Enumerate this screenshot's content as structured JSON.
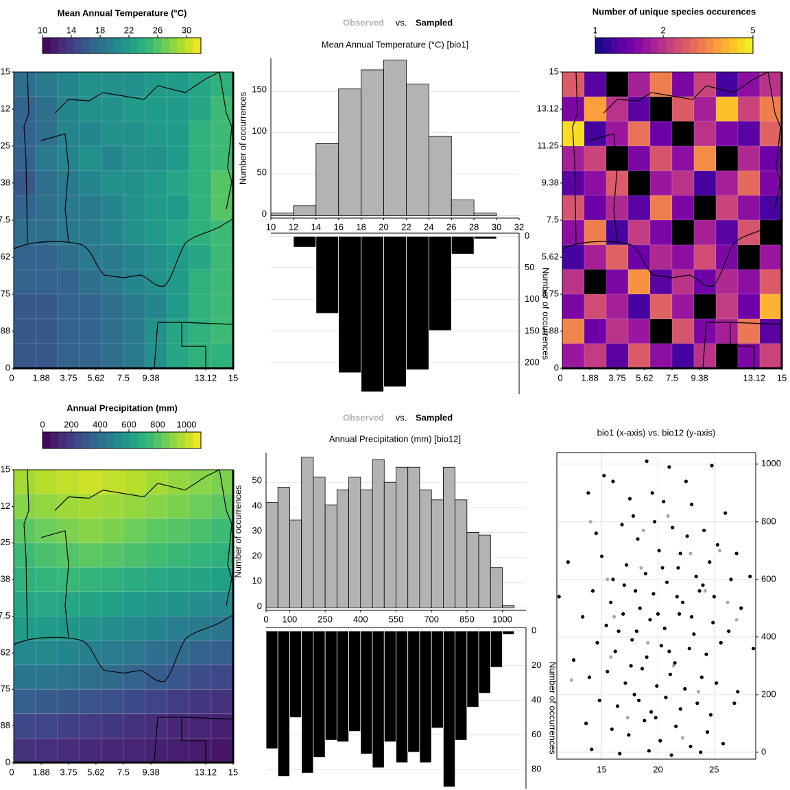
{
  "chart_data": [
    {
      "type": "heatmap",
      "title": "Mean Annual Temperature (°C)",
      "colorbar": {
        "lim": [
          10,
          32
        ],
        "ticks": [
          10,
          14,
          18,
          22,
          26,
          30
        ],
        "log": false,
        "colors": [
          "#440154",
          "#482878",
          "#3e4989",
          "#31688e",
          "#26828e",
          "#1f9e89",
          "#35b779",
          "#6ece58",
          "#b5de2b",
          "#fde725"
        ]
      },
      "null_color": "#000000",
      "xlim": [
        0,
        15
      ],
      "ylim": [
        0,
        15
      ],
      "xticks": [
        0,
        1.88,
        3.75,
        5.62,
        7.5,
        9.38,
        13.12,
        15
      ],
      "yticks": [
        0,
        1.88,
        3.75,
        5.62,
        7.5,
        9.38,
        11.25,
        13.12,
        15
      ],
      "z": [
        [
          18,
          19,
          20,
          21,
          21,
          21,
          22,
          22,
          23,
          24
        ],
        [
          17,
          18,
          20,
          21,
          21,
          22,
          22,
          22,
          23,
          25
        ],
        [
          17,
          18,
          20,
          20,
          21,
          21,
          22,
          22,
          24,
          25
        ],
        [
          17,
          19,
          20,
          21,
          20,
          21,
          21,
          22,
          24,
          25
        ],
        [
          16,
          18,
          19,
          20,
          21,
          21,
          22,
          23,
          24,
          26
        ],
        [
          17,
          18,
          19,
          19,
          20,
          21,
          22,
          22,
          24,
          26
        ],
        [
          18,
          18,
          19,
          19,
          20,
          21,
          22,
          23,
          24,
          25
        ],
        [
          17,
          17,
          18,
          19,
          19,
          20,
          21,
          22,
          23,
          25
        ],
        [
          17,
          17,
          17,
          18,
          19,
          20,
          21,
          22,
          24,
          25
        ],
        [
          16,
          16,
          17,
          17,
          18,
          19,
          20,
          22,
          24,
          25
        ],
        [
          16,
          16,
          17,
          17,
          18,
          19,
          21,
          23,
          24,
          25
        ],
        [
          16,
          16,
          17,
          17,
          18,
          19,
          21,
          23,
          24,
          24
        ]
      ]
    },
    {
      "type": "histogram",
      "title_joiner": "vs.",
      "subtitle": "Mean Annual Temperature (°C) [bio1]",
      "ylabel": "Number of occurrences",
      "y2label": "Number of occurrences",
      "bins": [
        10,
        12,
        14,
        16,
        18,
        20,
        22,
        24,
        26,
        28,
        30,
        32
      ],
      "xlim": [
        10,
        32
      ],
      "xticks": [
        10,
        12,
        14,
        16,
        18,
        20,
        22,
        24,
        26,
        28,
        30,
        32
      ],
      "ylim": [
        -3,
        190
      ],
      "yticks": [
        0,
        50,
        100,
        150
      ],
      "y2lim": [
        -5,
        250
      ],
      "y2ticks": [
        0,
        50,
        100,
        150,
        200
      ],
      "grid": true,
      "series": [
        {
          "name": "Observed",
          "color": "#b3b3b3",
          "values": [
            3,
            12,
            87,
            153,
            176,
            188,
            159,
            96,
            19,
            3,
            0
          ]
        },
        {
          "name": "Sampled",
          "color": "#000000",
          "axis": "y2",
          "values": [
            0,
            17,
            122,
            216,
            246,
            238,
            211,
            149,
            28,
            4,
            0
          ]
        }
      ]
    },
    {
      "type": "heatmap",
      "title": "Number of unique species occurences",
      "colorbar": {
        "lim": [
          1,
          5
        ],
        "ticks": [
          1,
          2,
          5
        ],
        "log": true,
        "colors": [
          "#0d0887",
          "#46039f",
          "#7201a8",
          "#9c179e",
          "#bd3786",
          "#d8576b",
          "#ed7953",
          "#fb9f3a",
          "#fdca26",
          "#f0f921"
        ]
      },
      "null_color": "#000000",
      "xlim": [
        0,
        15
      ],
      "ylim": [
        0,
        15
      ],
      "xticks": [
        0,
        1.88,
        3.75,
        5.62,
        7.5,
        9.38,
        13.12,
        15
      ],
      "yticks": [
        0,
        1.88,
        3.75,
        5.62,
        7.5,
        9.38,
        11.25,
        13.12,
        15
      ],
      "z": [
        [
          2.5,
          1.3,
          null,
          1.8,
          3,
          1.5,
          2.2,
          1.2,
          1.6,
          2
        ],
        [
          1.5,
          3.5,
          2,
          1.3,
          null,
          2.5,
          1.8,
          4,
          2.2,
          3
        ],
        [
          4.5,
          1.2,
          1.7,
          2.8,
          1.4,
          null,
          2,
          1.5,
          1.3,
          2.6
        ],
        [
          1.8,
          2.2,
          null,
          1.5,
          2.4,
          1.6,
          3.2,
          null,
          1.9,
          1.4
        ],
        [
          1.3,
          1.6,
          2.5,
          null,
          1.7,
          2,
          1.2,
          1.8,
          2.7,
          1.5
        ],
        [
          2.4,
          1.4,
          1.9,
          1.3,
          3,
          1.5,
          null,
          2.2,
          1.6,
          1.2
        ],
        [
          1.6,
          3,
          1.2,
          2.1,
          1.5,
          null,
          1.8,
          1.3,
          2.4,
          null
        ],
        [
          1.2,
          1.8,
          2.6,
          1.4,
          1.9,
          1.6,
          2.3,
          1.5,
          null,
          1.7
        ],
        [
          2,
          null,
          1.5,
          3.3,
          1.3,
          2,
          1.4,
          1.9,
          1.6,
          2.5
        ],
        [
          1.5,
          2.3,
          1.8,
          1.2,
          2.6,
          1.7,
          null,
          2.1,
          1.4,
          3.8
        ],
        [
          3.1,
          1.4,
          2,
          1.7,
          null,
          2.4,
          1.5,
          1.8,
          2.9,
          1.3
        ],
        [
          1.7,
          2.1,
          1.3,
          2.5,
          1.6,
          1.2,
          2,
          null,
          1.5,
          2.2
        ]
      ]
    },
    {
      "type": "heatmap",
      "title": "Annual Precipitation (mm)",
      "colorbar": {
        "lim": [
          0,
          1100
        ],
        "ticks": [
          0,
          200,
          400,
          600,
          800,
          1000
        ],
        "log": false,
        "colors": [
          "#440154",
          "#482878",
          "#3e4989",
          "#31688e",
          "#26828e",
          "#1f9e89",
          "#35b779",
          "#6ece58",
          "#b5de2b",
          "#fde725"
        ]
      },
      "null_color": "#000000",
      "xlim": [
        0,
        15
      ],
      "ylim": [
        0,
        15
      ],
      "xticks": [
        0,
        1.88,
        3.75,
        5.62,
        7.5,
        9.38,
        13.12,
        15
      ],
      "yticks": [
        0,
        1.88,
        3.75,
        5.62,
        7.5,
        9.38,
        11.25,
        13.12,
        15
      ],
      "z": [
        [
          950,
          980,
          1000,
          1020,
          1000,
          980,
          950,
          920,
          900,
          880
        ],
        [
          900,
          920,
          940,
          950,
          940,
          920,
          900,
          880,
          850,
          820
        ],
        [
          820,
          850,
          880,
          900,
          880,
          850,
          820,
          800,
          780,
          750
        ],
        [
          750,
          780,
          800,
          820,
          800,
          780,
          760,
          740,
          720,
          700
        ],
        [
          700,
          720,
          740,
          720,
          700,
          680,
          660,
          650,
          640,
          620
        ],
        [
          650,
          660,
          650,
          640,
          620,
          600,
          580,
          560,
          540,
          520
        ],
        [
          600,
          600,
          580,
          560,
          540,
          520,
          500,
          470,
          450,
          430
        ],
        [
          520,
          520,
          500,
          480,
          460,
          440,
          410,
          380,
          350,
          330
        ],
        [
          430,
          430,
          420,
          400,
          380,
          350,
          320,
          290,
          260,
          240
        ],
        [
          330,
          320,
          300,
          290,
          270,
          250,
          230,
          200,
          180,
          160
        ],
        [
          240,
          230,
          210,
          200,
          180,
          160,
          140,
          120,
          110,
          100
        ],
        [
          160,
          150,
          140,
          130,
          120,
          110,
          100,
          90,
          80,
          70
        ]
      ]
    },
    {
      "type": "histogram",
      "title_joiner": "vs.",
      "subtitle": "Annual Precipitation (mm) [bio12]",
      "ylabel": "Number of occurrences",
      "y2label": "Number of occurrences",
      "bins": [
        0,
        50,
        100,
        150,
        200,
        250,
        300,
        350,
        400,
        450,
        500,
        550,
        600,
        650,
        700,
        750,
        800,
        850,
        900,
        950,
        1000,
        1050
      ],
      "xlim": [
        0,
        1100
      ],
      "xticks": [
        0,
        100,
        250,
        400,
        550,
        700,
        850,
        1000
      ],
      "ylim": [
        -1,
        61.8
      ],
      "yticks": [
        0,
        10,
        20,
        30,
        40,
        50
      ],
      "y2lim": [
        -2,
        91
      ],
      "y2ticks": [
        0,
        20,
        40,
        60,
        80
      ],
      "grid": true,
      "series": [
        {
          "name": "Observed",
          "color": "#b3b3b3",
          "values": [
            42,
            48,
            35,
            60,
            52,
            41,
            47,
            52,
            47,
            59,
            50,
            56,
            56,
            47,
            43,
            56,
            43,
            30,
            29,
            16,
            1
          ]
        },
        {
          "name": "Sampled",
          "color": "#000000",
          "axis": "y2",
          "values": [
            68,
            84,
            50,
            82,
            73,
            63,
            64,
            58,
            71,
            79,
            64,
            76,
            70,
            76,
            56,
            90,
            63,
            44,
            36,
            21,
            2
          ]
        }
      ]
    },
    {
      "type": "scatter",
      "title": "bio1 (x-axis) vs. bio12 (y-axis)",
      "xlim": [
        11,
        28.7
      ],
      "ylim": [
        -24,
        1040
      ],
      "xticks": [
        15,
        20,
        25
      ],
      "yticks": [
        0,
        200,
        400,
        600,
        800,
        1000
      ],
      "grid": true,
      "series": [
        {
          "color": "#aaaaaa",
          "x": [
            14,
            15.5,
            18.7,
            22.9,
            25.5,
            12.3,
            16.1,
            19.1,
            21.4,
            24.2,
            26.2,
            17.3,
            20.9,
            23.6,
            15.8,
            22.2,
            18.5,
            27
          ],
          "values": [
            800,
            600,
            770,
            690,
            700,
            250,
            470,
            380,
            300,
            560,
            520,
            120,
            820,
            210,
            330,
            50,
            640,
            460
          ]
        },
        {
          "color": "#000000",
          "x": [
            15.2,
            16,
            19,
            21,
            24.8,
            13.8,
            17.5,
            20.5,
            23,
            26,
            14.5,
            16.8,
            18.2,
            19.7,
            21.3,
            22.6,
            24.1,
            25.3,
            27,
            12,
            15,
            17.2,
            18.9,
            20.1,
            21.8,
            23.4,
            24.6,
            26.5,
            28.2,
            11.2,
            14.2,
            15.8,
            17,
            18.4,
            19.6,
            20.8,
            22.2,
            23.7,
            25,
            27.4,
            13.3,
            15.4,
            16.9,
            18.1,
            19.3,
            20.6,
            21.9,
            23.2,
            24.9,
            26.3,
            12.5,
            14.6,
            16.2,
            17.7,
            19,
            20.3,
            21.5,
            22.8,
            24.3,
            25.6,
            28.5,
            13.9,
            15.5,
            17.1,
            18.6,
            19.9,
            21.1,
            22.4,
            23.9,
            25.2,
            27.1,
            14.8,
            16.4,
            17.9,
            19.4,
            20.7,
            22,
            23.5,
            24.7,
            26.8,
            13.6,
            15.9,
            17.4,
            18.8,
            20.2,
            21.6,
            22.9,
            24.4,
            25.8,
            14.1,
            16.6,
            19.2,
            21.2,
            23.8,
            18,
            20,
            22,
            16,
            19.5,
            21,
            17.6,
            23,
            20.4,
            18.3,
            22.5,
            16.5,
            24,
            19.8,
            21.7,
            17.8
          ],
          "values": [
            960,
            940,
            1010,
            990,
            995,
            900,
            880,
            870,
            860,
            830,
            760,
            790,
            740,
            800,
            780,
            750,
            770,
            720,
            690,
            660,
            680,
            650,
            620,
            700,
            640,
            610,
            660,
            600,
            610,
            540,
            560,
            520,
            580,
            500,
            550,
            590,
            520,
            560,
            540,
            500,
            470,
            440,
            480,
            420,
            460,
            430,
            480,
            410,
            450,
            420,
            320,
            380,
            350,
            390,
            330,
            370,
            310,
            360,
            340,
            380,
            360,
            260,
            280,
            240,
            290,
            230,
            270,
            220,
            260,
            240,
            210,
            180,
            160,
            200,
            140,
            190,
            150,
            170,
            130,
            170,
            100,
            80,
            60,
            110,
            40,
            90,
            20,
            70,
            30,
            10,
            -5,
            5,
            -10,
            0,
            560,
            480,
            690,
            600,
            900,
            350,
            300,
            470,
            640,
            180,
            940,
            420,
            580,
            120,
            540,
            820
          ]
        }
      ]
    }
  ]
}
